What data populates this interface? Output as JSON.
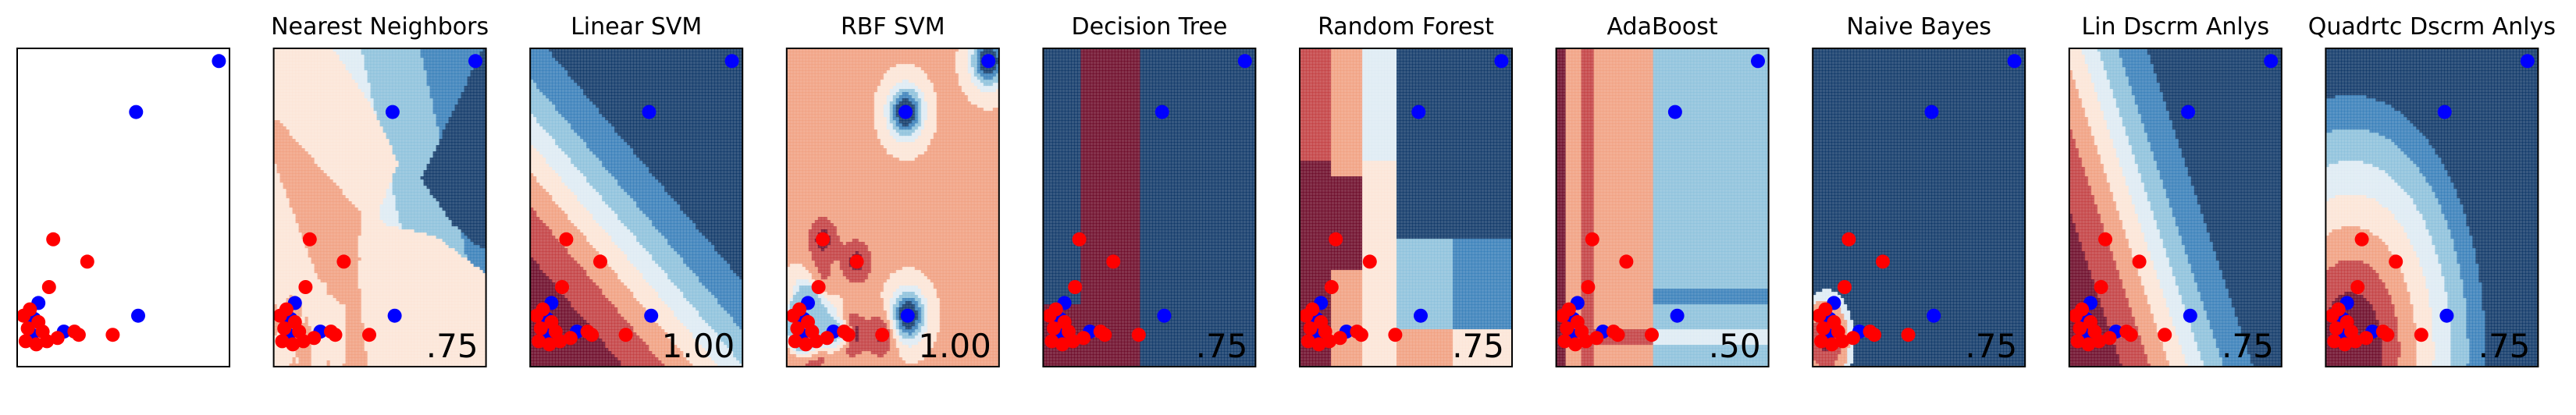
{
  "chart_data": {
    "type": "scatter",
    "description_free": true,
    "xlim": [
      0,
      1
    ],
    "ylim": [
      0,
      1
    ],
    "grid": false,
    "point_colors": {
      "class_0": "#ff0000",
      "class_1": "#0000ff"
    },
    "points": [
      {
        "x": 0.95,
        "y": 0.96,
        "label": 1
      },
      {
        "x": 0.56,
        "y": 0.8,
        "label": 1
      },
      {
        "x": 0.57,
        "y": 0.16,
        "label": 1
      },
      {
        "x": 0.1,
        "y": 0.2,
        "label": 1
      },
      {
        "x": 0.08,
        "y": 0.15,
        "label": 1
      },
      {
        "x": 0.22,
        "y": 0.11,
        "label": 1
      },
      {
        "x": 0.07,
        "y": 0.1,
        "label": 1
      },
      {
        "x": 0.17,
        "y": 0.4,
        "label": 0
      },
      {
        "x": 0.33,
        "y": 0.33,
        "label": 0
      },
      {
        "x": 0.15,
        "y": 0.25,
        "label": 0
      },
      {
        "x": 0.06,
        "y": 0.18,
        "label": 0
      },
      {
        "x": 0.05,
        "y": 0.12,
        "label": 0
      },
      {
        "x": 0.04,
        "y": 0.08,
        "label": 0
      },
      {
        "x": 0.09,
        "y": 0.07,
        "label": 0
      },
      {
        "x": 0.12,
        "y": 0.11,
        "label": 0
      },
      {
        "x": 0.14,
        "y": 0.08,
        "label": 0
      },
      {
        "x": 0.19,
        "y": 0.09,
        "label": 0
      },
      {
        "x": 0.27,
        "y": 0.11,
        "label": 0
      },
      {
        "x": 0.29,
        "y": 0.1,
        "label": 0
      },
      {
        "x": 0.45,
        "y": 0.1,
        "label": 0
      },
      {
        "x": 0.1,
        "y": 0.14,
        "label": 0
      },
      {
        "x": 0.03,
        "y": 0.16,
        "label": 0
      }
    ],
    "panels": [
      {
        "title": "",
        "score": "",
        "model": "input"
      },
      {
        "title": "Nearest Neighbors",
        "score": ".75",
        "model": "knn"
      },
      {
        "title": "Linear SVM",
        "score": "1.00",
        "model": "linear"
      },
      {
        "title": "RBF SVM",
        "score": "1.00",
        "model": "rbf"
      },
      {
        "title": "Decision Tree",
        "score": ".75",
        "model": "tree"
      },
      {
        "title": "Random Forest",
        "score": ".75",
        "model": "forest"
      },
      {
        "title": "AdaBoost",
        "score": ".50",
        "model": "ada"
      },
      {
        "title": "Naive Bayes",
        "score": ".75",
        "model": "nb"
      },
      {
        "title": "Lin Dscrm Anlys",
        "score": ".75",
        "model": "lda"
      },
      {
        "title": "Quadrtc Dscrm Anlys",
        "score": ".75",
        "model": "qda"
      }
    ]
  }
}
